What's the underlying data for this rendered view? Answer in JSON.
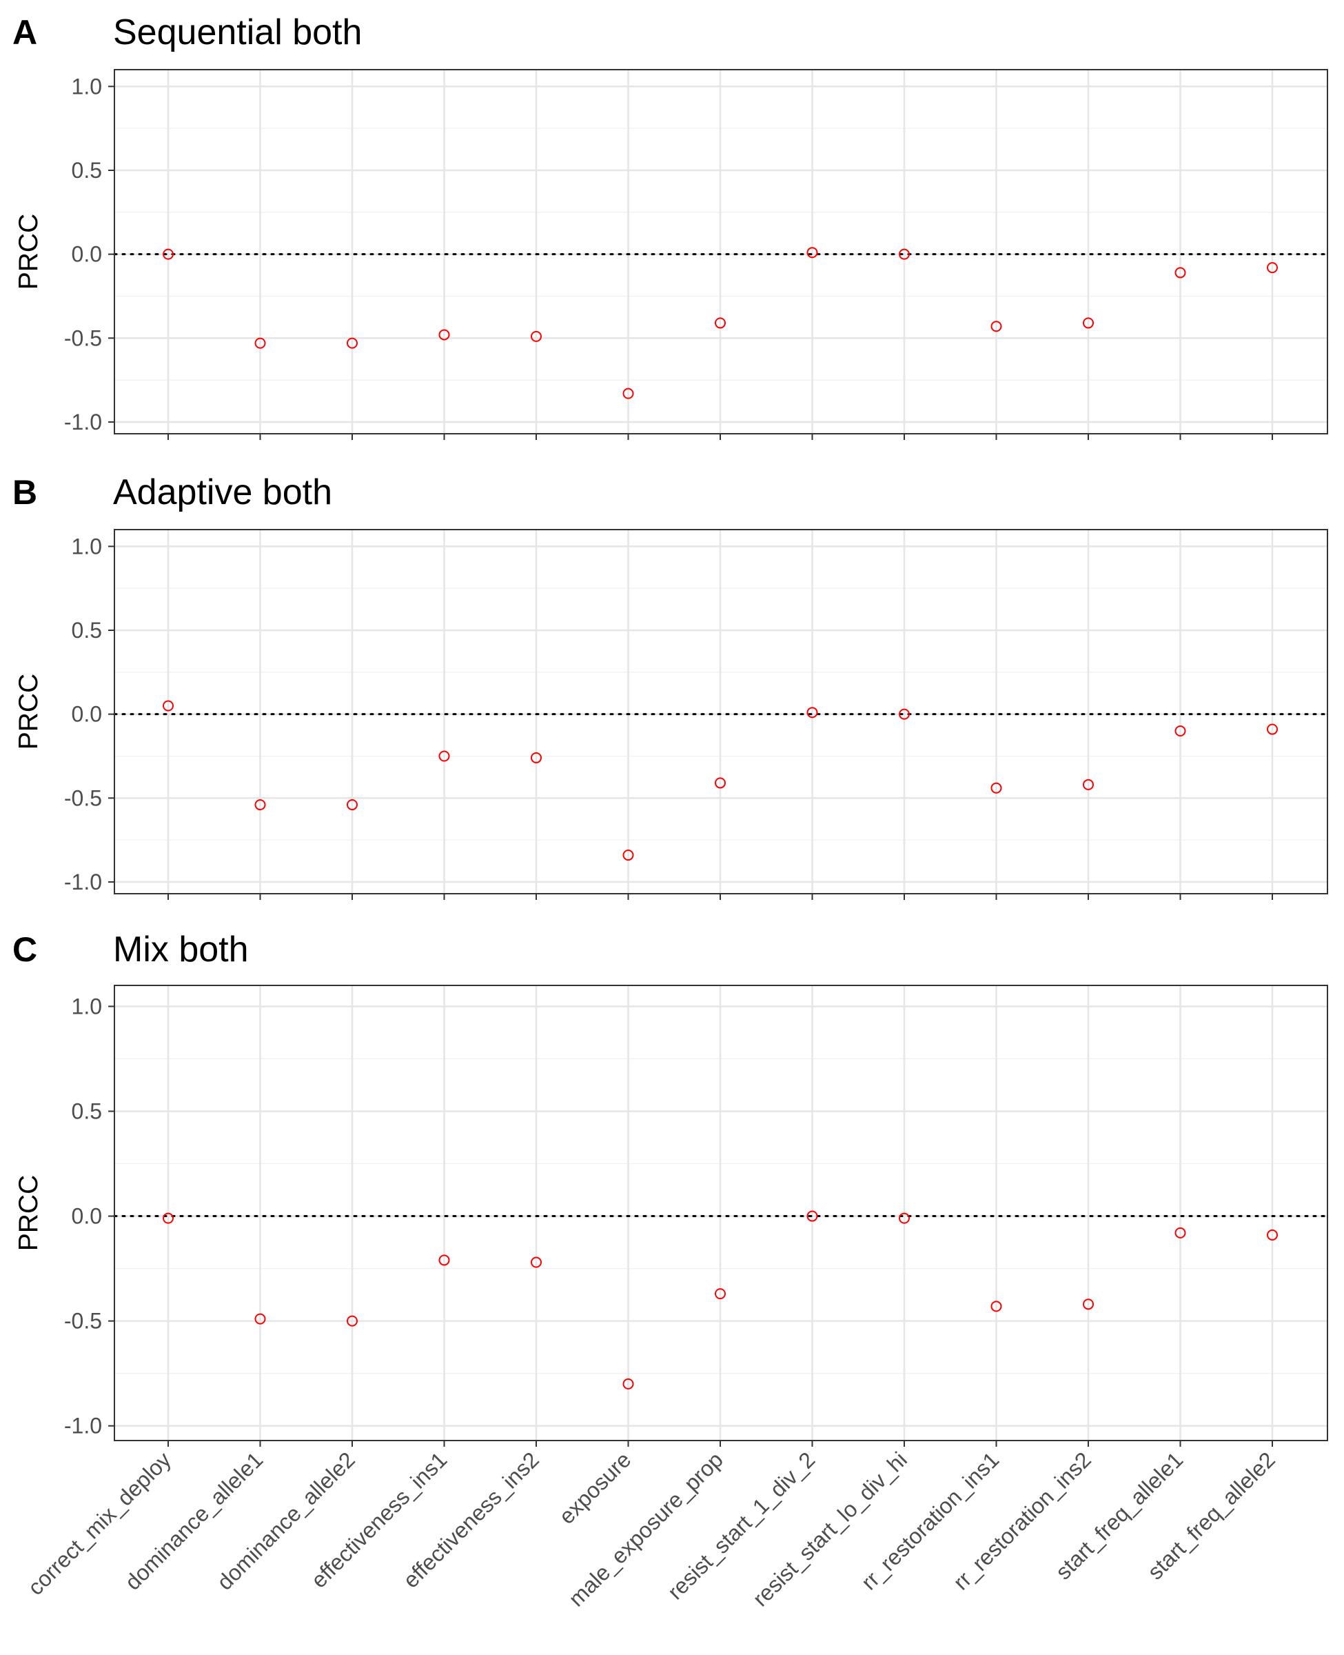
{
  "figure": {
    "colors": {
      "point": "#ff0000",
      "reference_line": "#000000"
    }
  },
  "chart_data": [
    {
      "type": "scatter",
      "panel_letter": "A",
      "title": "Sequential both",
      "ylabel": "PRCC",
      "xlabel": "",
      "ylim": [
        -1.07,
        1.1
      ],
      "yticks": [
        "1.0",
        "0.5",
        "0.0",
        "-0.5",
        "-1.0"
      ],
      "grid": true,
      "reference_line": {
        "y": 0,
        "style": "dotted"
      },
      "categories": [
        "correct_mix_deploy",
        "dominance_allele1",
        "dominance_allele2",
        "effectiveness_ins1",
        "effectiveness_ins2",
        "exposure",
        "male_exposure_prop",
        "resist_start_1_div_2",
        "resist_start_lo_div_hi",
        "rr_restoration_ins1",
        "rr_restoration_ins2",
        "start_freq_allele1",
        "start_freq_allele2"
      ],
      "values": [
        0.0,
        -0.53,
        -0.53,
        -0.48,
        -0.49,
        -0.83,
        -0.41,
        0.01,
        0.0,
        -0.43,
        -0.41,
        -0.11,
        -0.08
      ]
    },
    {
      "type": "scatter",
      "panel_letter": "B",
      "title": "Adaptive both",
      "ylabel": "PRCC",
      "xlabel": "",
      "ylim": [
        -1.07,
        1.1
      ],
      "yticks": [
        "1.0",
        "0.5",
        "0.0",
        "-0.5",
        "-1.0"
      ],
      "grid": true,
      "reference_line": {
        "y": 0,
        "style": "dotted"
      },
      "categories": [
        "correct_mix_deploy",
        "dominance_allele1",
        "dominance_allele2",
        "effectiveness_ins1",
        "effectiveness_ins2",
        "exposure",
        "male_exposure_prop",
        "resist_start_1_div_2",
        "resist_start_lo_div_hi",
        "rr_restoration_ins1",
        "rr_restoration_ins2",
        "start_freq_allele1",
        "start_freq_allele2"
      ],
      "values": [
        0.05,
        -0.54,
        -0.54,
        -0.25,
        -0.26,
        -0.84,
        -0.41,
        0.01,
        0.0,
        -0.44,
        -0.42,
        -0.1,
        -0.09
      ]
    },
    {
      "type": "scatter",
      "panel_letter": "C",
      "title": "Mix both",
      "ylabel": "PRCC",
      "xlabel": "",
      "ylim": [
        -1.07,
        1.1
      ],
      "yticks": [
        "1.0",
        "0.5",
        "0.0",
        "-0.5",
        "-1.0"
      ],
      "grid": true,
      "reference_line": {
        "y": 0,
        "style": "dotted"
      },
      "categories": [
        "correct_mix_deploy",
        "dominance_allele1",
        "dominance_allele2",
        "effectiveness_ins1",
        "effectiveness_ins2",
        "exposure",
        "male_exposure_prop",
        "resist_start_1_div_2",
        "resist_start_lo_div_hi",
        "rr_restoration_ins1",
        "rr_restoration_ins2",
        "start_freq_allele1",
        "start_freq_allele2"
      ],
      "values": [
        -0.01,
        -0.49,
        -0.5,
        -0.21,
        -0.22,
        -0.8,
        -0.37,
        0.0,
        -0.01,
        -0.43,
        -0.42,
        -0.08,
        -0.09
      ]
    }
  ]
}
